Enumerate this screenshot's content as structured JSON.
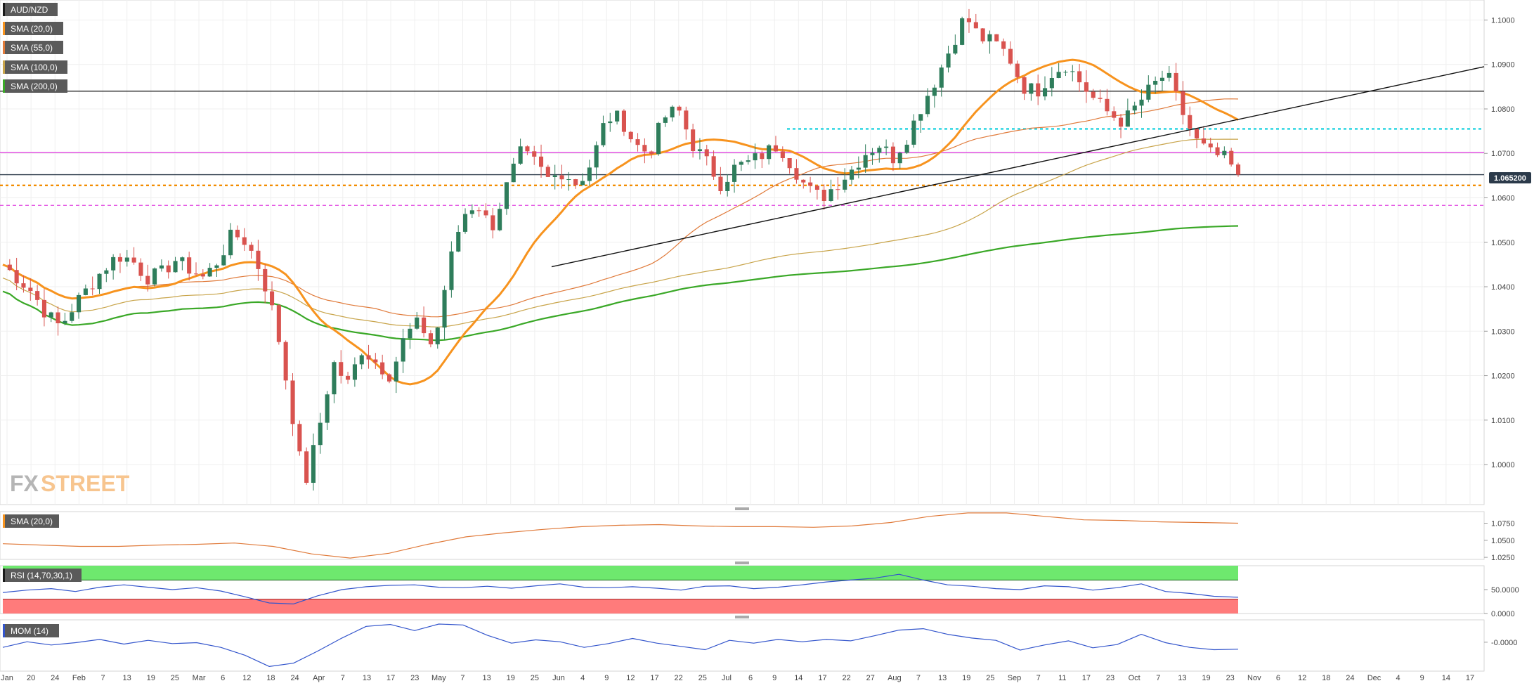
{
  "instrument": "AUD/NZD",
  "brand": {
    "fx": "FX",
    "street": "STREET"
  },
  "legend": [
    {
      "label": "SMA (20,0)",
      "color": "#f7931e"
    },
    {
      "label": "SMA (55,0)",
      "color": "#e07a3a"
    },
    {
      "label": "SMA (100,0)",
      "color": "#c8a44a"
    },
    {
      "label": "SMA (200,0)",
      "color": "#3aa827"
    }
  ],
  "colors": {
    "up_candle": "#2e7d5b",
    "down_candle": "#d9534f",
    "price_tag_bg": "#2b3a4a",
    "rsi_overbought": "#6ee86e",
    "rsi_oversold": "#ff7b7b",
    "oscillator_line": "#3355cc",
    "support_level": "#f28c00",
    "resistance_cyan": "#20d4e0",
    "magenta_level": "#e040e0"
  },
  "chart_data": [
    {
      "panel": "main",
      "type": "candlestick",
      "title": "AUD/NZD",
      "y_range": [
        0.991,
        1.1045
      ],
      "y_ticks": [
        "1.1000",
        "1.0900",
        "1.0800",
        "1.0700",
        "1.0600",
        "1.0500",
        "1.0400",
        "1.0300",
        "1.0200",
        "1.0100",
        "1.0000"
      ],
      "x_labels": [
        "Jan",
        "20",
        "24",
        "Feb",
        "7",
        "13",
        "19",
        "25",
        "Mar",
        "6",
        "12",
        "18",
        "24",
        "Apr",
        "7",
        "13",
        "17",
        "23",
        "May",
        "7",
        "13",
        "19",
        "25",
        "Jun",
        "4",
        "9",
        "12",
        "17",
        "22",
        "25",
        "Jul",
        "6",
        "9",
        "14",
        "17",
        "22",
        "27",
        "Aug",
        "7",
        "13",
        "19",
        "25",
        "Sep",
        "7",
        "11",
        "17",
        "23",
        "Oct",
        "7",
        "13",
        "19",
        "23",
        "Nov",
        "6",
        "12",
        "18",
        "24",
        "Dec",
        "4",
        "9",
        "14",
        "17"
      ],
      "last_price": "1.065200",
      "horizontal_levels": [
        {
          "value": 1.084,
          "style": "solid",
          "color": "#222222"
        },
        {
          "value": 1.0755,
          "style": "dotted",
          "color": "#20d4e0"
        },
        {
          "value": 1.0702,
          "style": "solid",
          "color": "#e040e0"
        },
        {
          "value": 1.0652,
          "style": "solid",
          "color": "#2b3a4a"
        },
        {
          "value": 1.0628,
          "style": "dotted",
          "color": "#f28c00"
        },
        {
          "value": 1.0583,
          "style": "dashed",
          "color": "#e040e0"
        }
      ],
      "trendline": {
        "start": 1.0445,
        "end": 1.0895
      },
      "price_path": [
        1.045,
        1.042,
        1.039,
        1.034,
        1.031,
        1.036,
        1.04,
        1.044,
        1.047,
        1.046,
        1.042,
        1.043,
        1.046,
        1.044,
        1.042,
        1.046,
        1.052,
        1.05,
        1.043,
        1.032,
        1.014,
        0.995,
        1.008,
        1.023,
        1.018,
        1.026,
        1.023,
        1.02,
        1.029,
        1.032,
        1.026,
        1.044,
        1.056,
        1.059,
        1.053,
        1.062,
        1.07,
        1.068,
        1.064,
        1.066,
        1.063,
        1.068,
        1.078,
        1.078,
        1.072,
        1.07,
        1.078,
        1.08,
        1.072,
        1.068,
        1.063,
        1.067,
        1.068,
        1.07,
        1.072,
        1.067,
        1.062,
        1.06,
        1.063,
        1.066,
        1.07,
        1.072,
        1.069,
        1.074,
        1.081,
        1.087,
        1.094,
        1.101,
        1.096,
        1.095,
        1.092,
        1.085,
        1.084,
        1.088,
        1.09,
        1.086,
        1.082,
        1.079,
        1.077,
        1.081,
        1.085,
        1.088,
        1.08,
        1.073,
        1.07,
        1.069,
        1.0652
      ],
      "candle_count": 180
    },
    {
      "panel": "sma20",
      "type": "line",
      "title": "SMA (20,0)",
      "y_range": [
        1.022,
        1.092
      ],
      "y_ticks": [
        "1.0750",
        "1.0500",
        "1.0250"
      ],
      "values": [
        1.045,
        1.043,
        1.041,
        1.041,
        1.043,
        1.044,
        1.046,
        1.041,
        1.03,
        1.024,
        1.031,
        1.044,
        1.055,
        1.061,
        1.066,
        1.07,
        1.072,
        1.073,
        1.071,
        1.07,
        1.07,
        1.069,
        1.071,
        1.076,
        1.085,
        1.09,
        1.09,
        1.085,
        1.08,
        1.079,
        1.077,
        1.076,
        1.075
      ]
    },
    {
      "panel": "rsi",
      "type": "line",
      "title": "RSI (14,70,30,1)",
      "y_range": [
        0,
        100
      ],
      "y_ticks": [
        "50.0000",
        "0.0000"
      ],
      "overbought": 70,
      "oversold": 30,
      "values": [
        44,
        49,
        52,
        46,
        55,
        60,
        55,
        50,
        54,
        47,
        35,
        22,
        20,
        37,
        50,
        56,
        59,
        60,
        55,
        54,
        57,
        53,
        58,
        62,
        55,
        54,
        56,
        53,
        49,
        57,
        58,
        52,
        55,
        60,
        66,
        70,
        74,
        82,
        70,
        60,
        57,
        52,
        50,
        58,
        56,
        49,
        54,
        62,
        46,
        42,
        36,
        34
      ]
    },
    {
      "panel": "mom",
      "type": "line",
      "title": "MOM (14)",
      "y_range": [
        -0.062,
        0.048
      ],
      "y_ticks": [
        "-0.0000"
      ],
      "values": [
        -0.011,
        0.001,
        -0.006,
        -0.001,
        0.006,
        -0.004,
        0.004,
        -0.003,
        -0.001,
        -0.011,
        -0.028,
        -0.052,
        -0.045,
        -0.019,
        0.009,
        0.034,
        0.038,
        0.025,
        0.039,
        0.037,
        0.015,
        -0.002,
        0.005,
        0.001,
        -0.011,
        -0.003,
        0.008,
        -0.002,
        -0.009,
        -0.016,
        0.004,
        -0.002,
        0.006,
        0.001,
        0.006,
        0.003,
        0.014,
        0.026,
        0.029,
        0.017,
        0.009,
        0.004,
        -0.017,
        -0.006,
        0.003,
        -0.012,
        -0.005,
        0.017,
        -0.001,
        -0.011,
        -0.016,
        -0.015
      ]
    }
  ]
}
